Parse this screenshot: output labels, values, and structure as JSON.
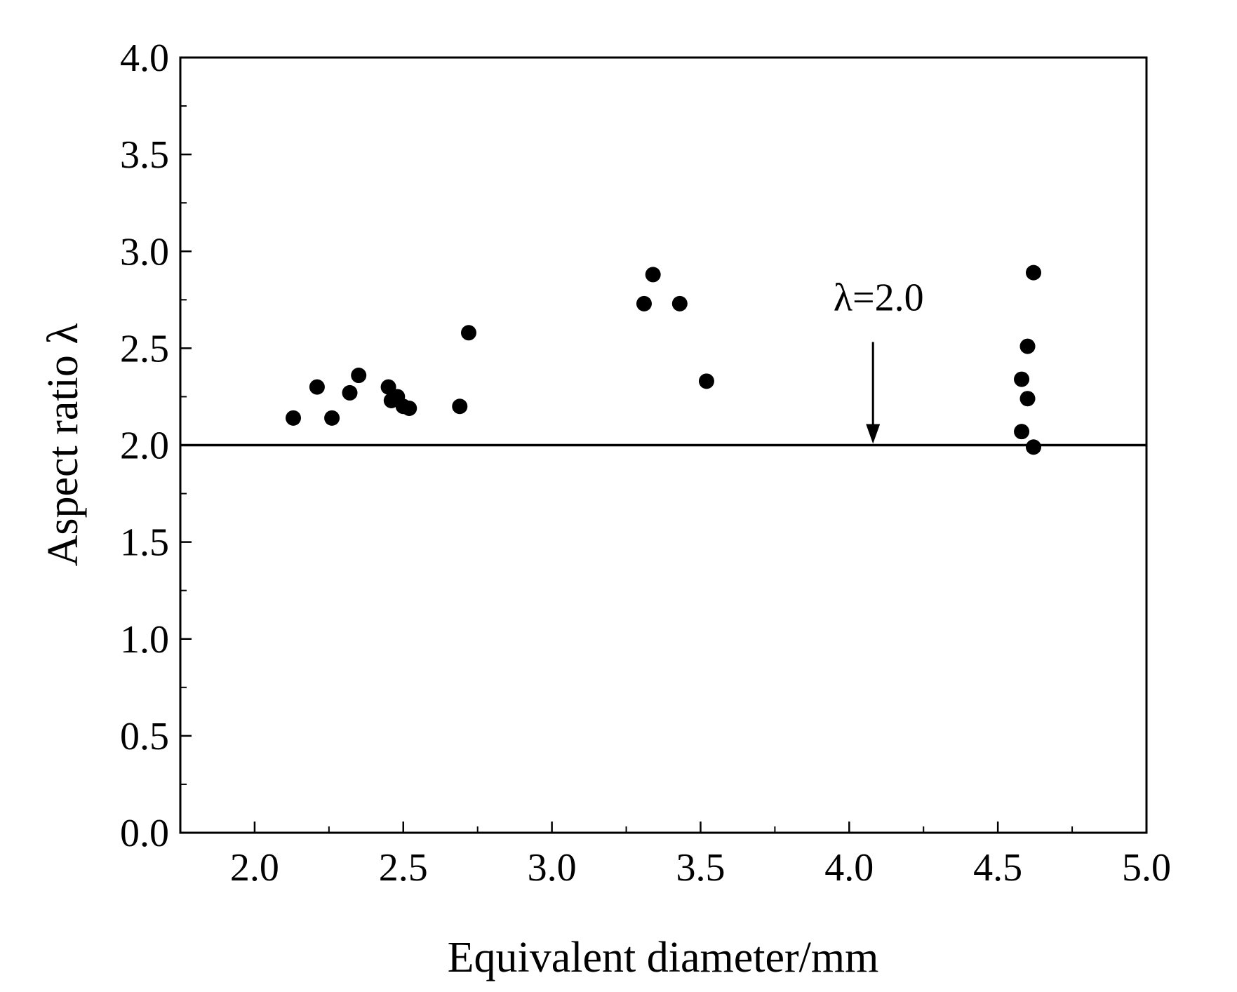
{
  "chart_data": {
    "type": "scatter",
    "xlabel": "Equivalent diameter/mm",
    "ylabel": "Aspect ratio λ",
    "xlim": [
      1.75,
      5.0
    ],
    "ylim": [
      0.0,
      4.0
    ],
    "x_ticks": [
      "2.0",
      "2.5",
      "3.0",
      "3.5",
      "4.0",
      "4.5",
      "5.0"
    ],
    "y_ticks": [
      "0.0",
      "0.5",
      "1.0",
      "1.5",
      "2.0",
      "2.5",
      "3.0",
      "3.5",
      "4.0"
    ],
    "grid": false,
    "marker_color": "#000000",
    "points": [
      {
        "x": 2.13,
        "y": 2.14
      },
      {
        "x": 2.21,
        "y": 2.3
      },
      {
        "x": 2.26,
        "y": 2.14
      },
      {
        "x": 2.32,
        "y": 2.27
      },
      {
        "x": 2.35,
        "y": 2.36
      },
      {
        "x": 2.45,
        "y": 2.3
      },
      {
        "x": 2.46,
        "y": 2.23
      },
      {
        "x": 2.48,
        "y": 2.25
      },
      {
        "x": 2.5,
        "y": 2.2
      },
      {
        "x": 2.52,
        "y": 2.19
      },
      {
        "x": 2.69,
        "y": 2.2
      },
      {
        "x": 2.72,
        "y": 2.58
      },
      {
        "x": 3.31,
        "y": 2.73
      },
      {
        "x": 3.34,
        "y": 2.88
      },
      {
        "x": 3.43,
        "y": 2.73
      },
      {
        "x": 3.52,
        "y": 2.33
      },
      {
        "x": 4.58,
        "y": 2.34
      },
      {
        "x": 4.58,
        "y": 2.07
      },
      {
        "x": 4.6,
        "y": 2.51
      },
      {
        "x": 4.6,
        "y": 2.24
      },
      {
        "x": 4.62,
        "y": 2.89
      },
      {
        "x": 4.62,
        "y": 1.99
      }
    ],
    "reference_line": {
      "y": 2.0
    },
    "annotation": {
      "text": "λ=2.0",
      "x": 4.08,
      "y": 2.0
    }
  }
}
